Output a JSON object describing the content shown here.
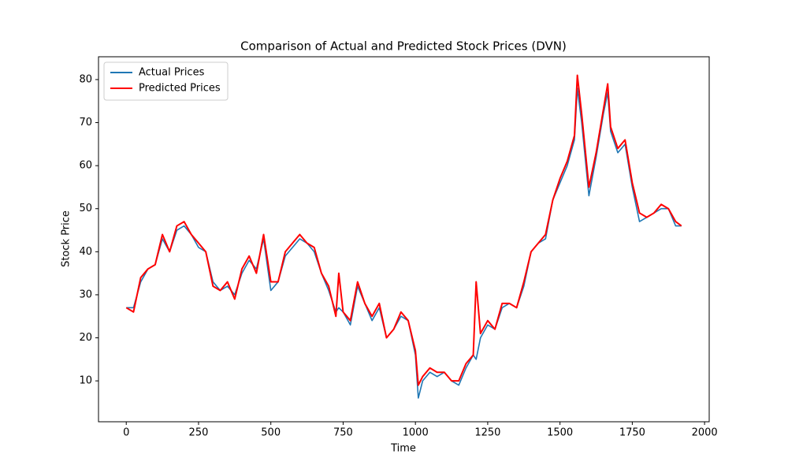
{
  "chart_data": {
    "type": "line",
    "title": "Comparison of Actual and Predicted Stock Prices (DVN)",
    "x_label": "Time",
    "y_label": "Stock Price",
    "x": [
      0,
      25,
      50,
      75,
      100,
      125,
      150,
      175,
      200,
      225,
      250,
      275,
      300,
      325,
      350,
      375,
      400,
      425,
      450,
      475,
      500,
      525,
      550,
      575,
      600,
      625,
      650,
      675,
      700,
      725,
      735,
      750,
      775,
      800,
      825,
      850,
      875,
      900,
      925,
      950,
      975,
      1000,
      1010,
      1025,
      1050,
      1075,
      1100,
      1125,
      1150,
      1175,
      1200,
      1210,
      1225,
      1250,
      1275,
      1300,
      1325,
      1350,
      1375,
      1400,
      1425,
      1450,
      1475,
      1500,
      1525,
      1550,
      1560,
      1575,
      1600,
      1625,
      1650,
      1665,
      1675,
      1700,
      1725,
      1750,
      1775,
      1800,
      1825,
      1850,
      1875,
      1900,
      1920
    ],
    "series": [
      {
        "name": "Actual Prices",
        "color": "#1f77b4",
        "values": [
          27,
          27,
          33,
          36,
          37,
          43,
          40,
          45,
          46,
          44,
          41,
          40,
          33,
          31,
          32,
          30,
          35,
          38,
          36,
          43,
          31,
          33,
          39,
          41,
          43,
          42,
          40,
          35,
          31,
          26,
          27,
          26,
          23,
          32,
          28,
          24,
          27,
          20,
          22,
          25,
          24,
          16,
          6,
          10,
          12,
          11,
          12,
          10,
          9,
          13,
          16,
          15,
          20,
          23,
          22,
          27,
          28,
          27,
          32,
          40,
          42,
          43,
          52,
          56,
          60,
          66,
          78,
          70,
          53,
          62,
          72,
          77,
          68,
          63,
          65,
          55,
          47,
          48,
          49,
          50,
          50,
          46,
          46
        ]
      },
      {
        "name": "Predicted Prices",
        "color": "#ff0000",
        "values": [
          27,
          26,
          34,
          36,
          37,
          44,
          40,
          46,
          47,
          44,
          42,
          40,
          32,
          31,
          33,
          29,
          36,
          39,
          35,
          44,
          33,
          33,
          40,
          42,
          44,
          42,
          41,
          35,
          32,
          25,
          35,
          26,
          24,
          33,
          28,
          25,
          28,
          20,
          22,
          26,
          24,
          17,
          9,
          11,
          13,
          12,
          12,
          10,
          10,
          14,
          16,
          33,
          21,
          24,
          22,
          28,
          28,
          27,
          33,
          40,
          42,
          44,
          52,
          57,
          61,
          67,
          81,
          72,
          55,
          63,
          73,
          79,
          69,
          64,
          66,
          56,
          49,
          48,
          49,
          51,
          50,
          47,
          46
        ]
      }
    ],
    "xlim": [
      -96,
      2016
    ],
    "ylim": [
      0.5,
      85.3
    ],
    "xticks": [
      0,
      250,
      500,
      750,
      1000,
      1250,
      1500,
      1750,
      2000
    ],
    "yticks": [
      10,
      20,
      30,
      40,
      50,
      60,
      70,
      80
    ],
    "legend": "upper left"
  }
}
